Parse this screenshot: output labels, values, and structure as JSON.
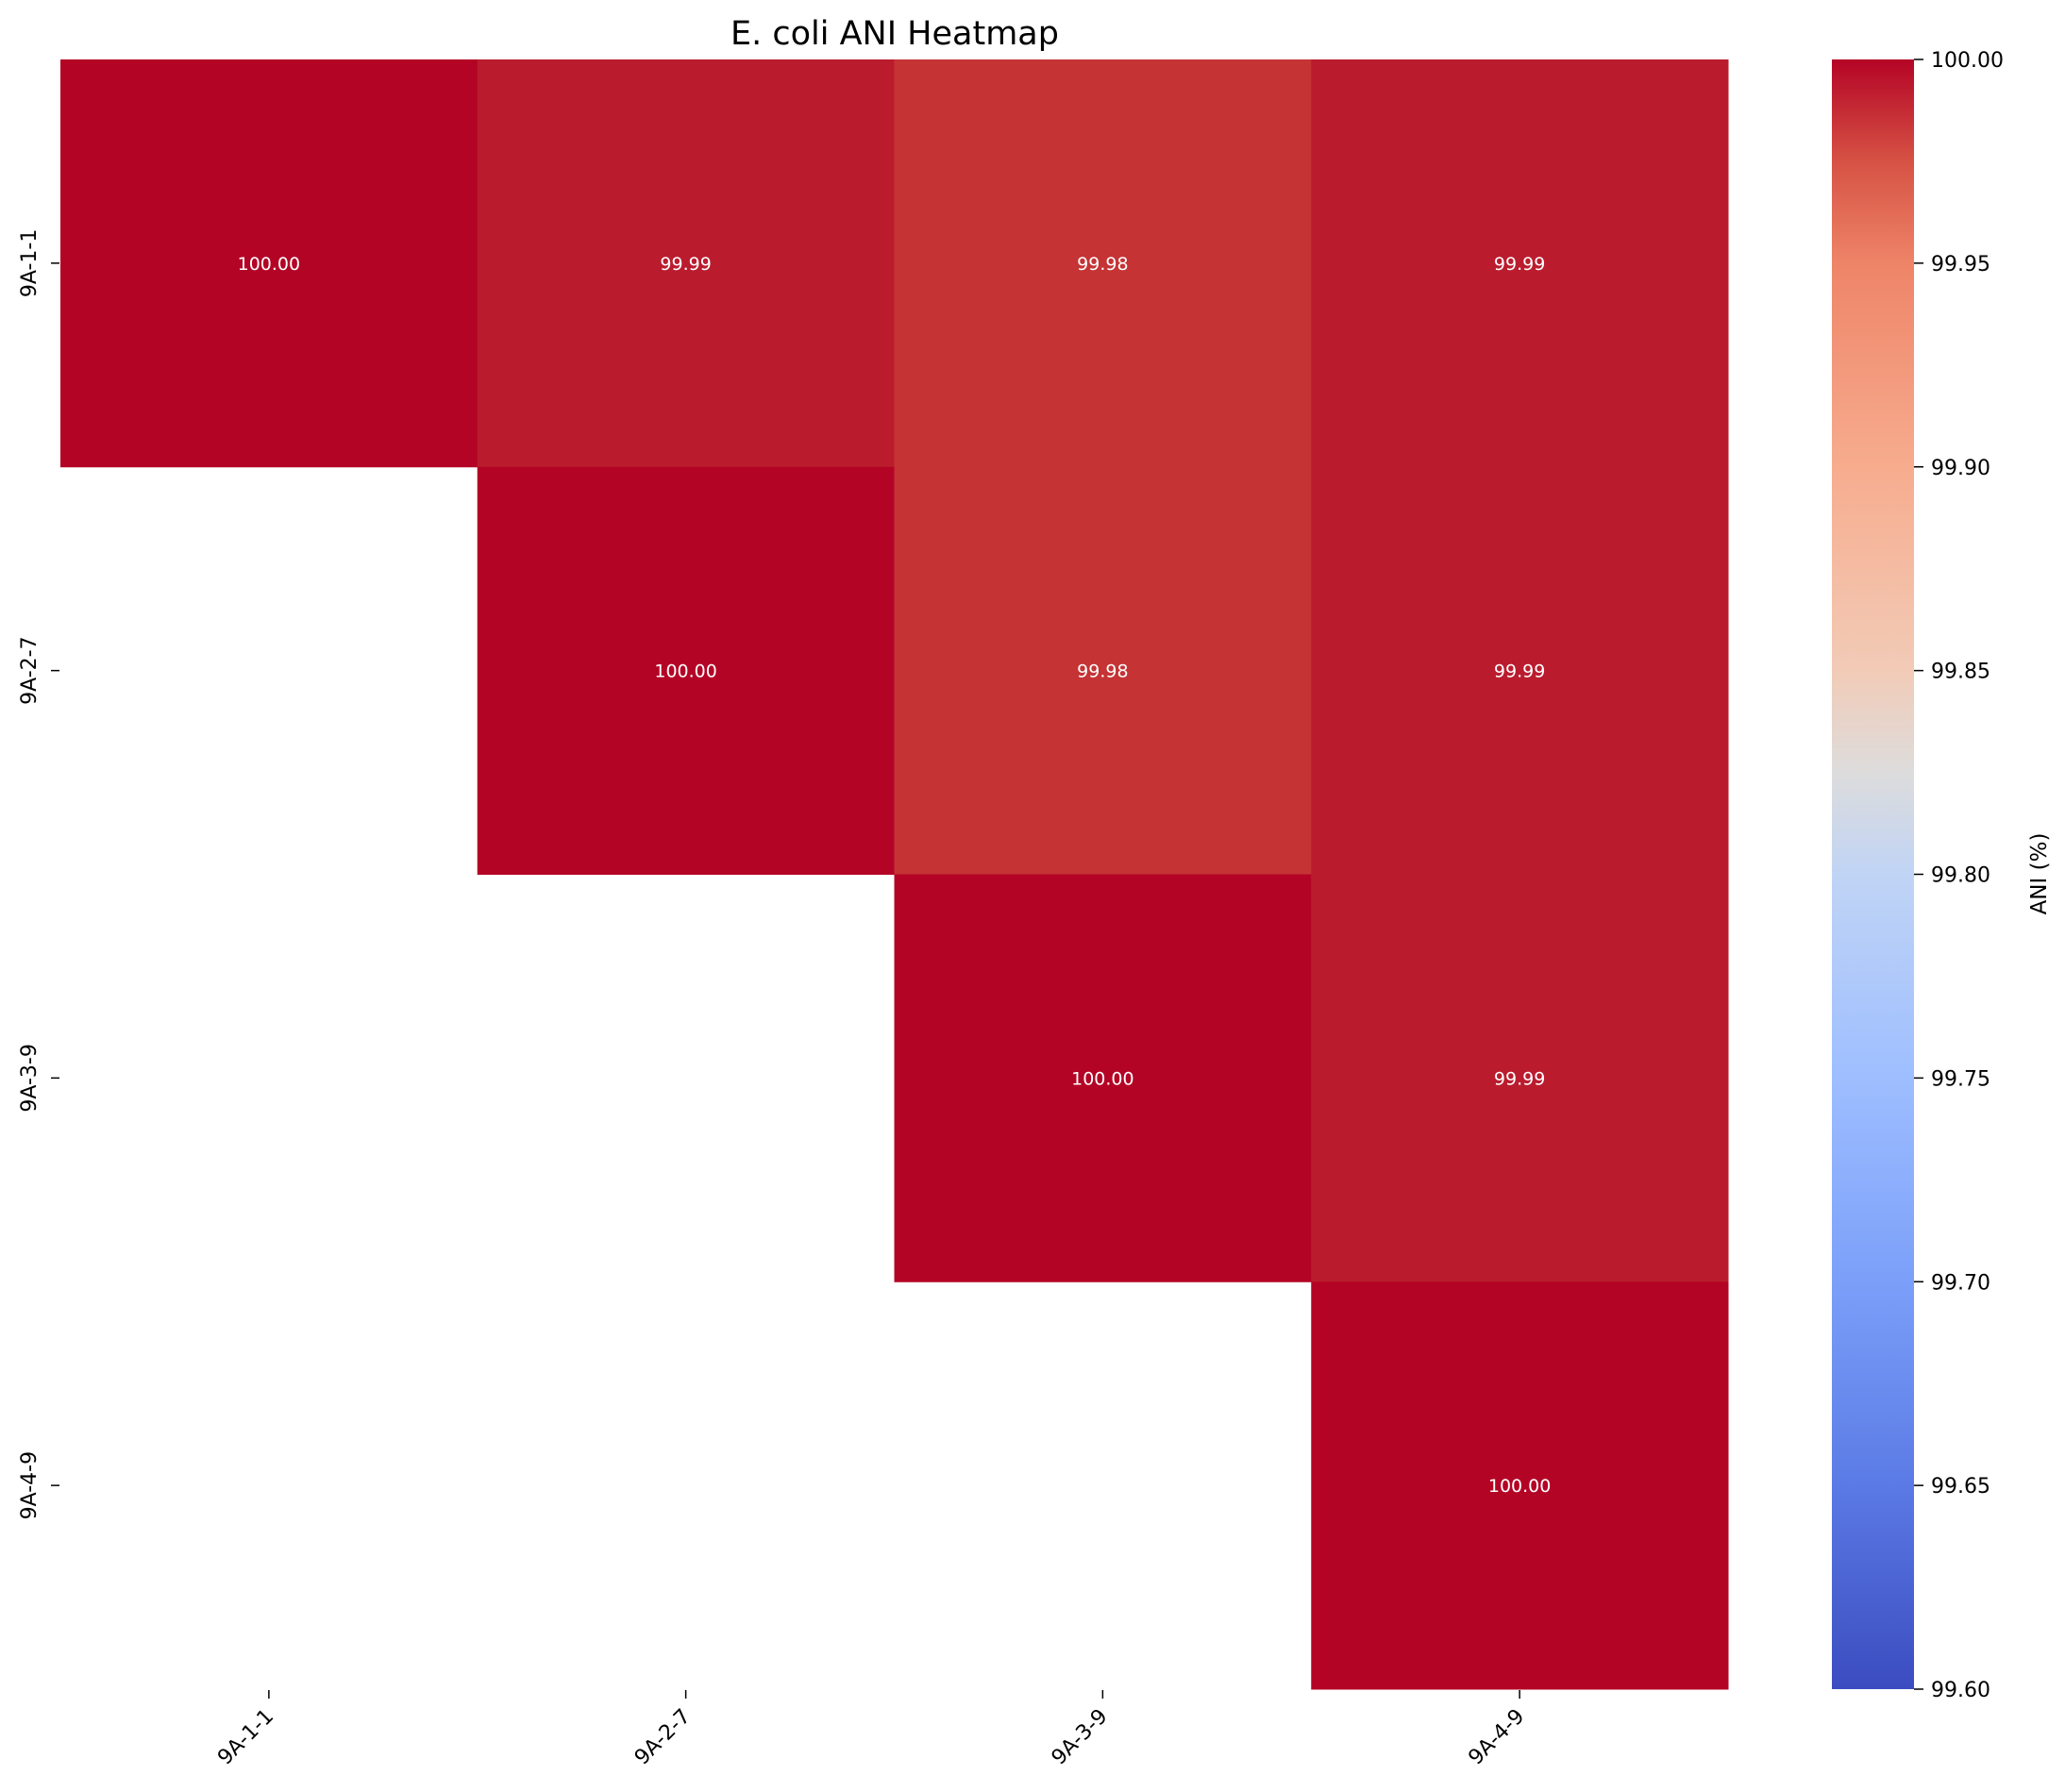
{
  "chart_data": {
    "type": "heatmap",
    "title": "E. coli ANI Heatmap",
    "rows": [
      "9A-1-1",
      "9A-2-7",
      "9A-3-9",
      "9A-4-9"
    ],
    "columns": [
      "9A-1-1",
      "9A-2-7",
      "9A-3-9",
      "9A-4-9"
    ],
    "values": [
      [
        100.0,
        99.99,
        99.98,
        99.99
      ],
      [
        null,
        100.0,
        99.98,
        99.99
      ],
      [
        null,
        null,
        100.0,
        99.99
      ],
      [
        null,
        null,
        null,
        100.0
      ]
    ],
    "cell_labels": [
      [
        "100.00",
        "99.99",
        "99.98",
        "99.99"
      ],
      [
        "",
        "100.00",
        "99.98",
        "99.99"
      ],
      [
        "",
        "",
        "100.00",
        "99.99"
      ],
      [
        "",
        "",
        "",
        "100.00"
      ]
    ],
    "colorbar": {
      "label": "ANI (%)",
      "vmin": 99.6,
      "vmax": 100.0,
      "ticks": [
        "99.60",
        "99.65",
        "99.70",
        "99.75",
        "99.80",
        "99.85",
        "99.90",
        "99.95",
        "100.00"
      ],
      "colormap": "coolwarm"
    },
    "mask": "lower-triangle"
  }
}
